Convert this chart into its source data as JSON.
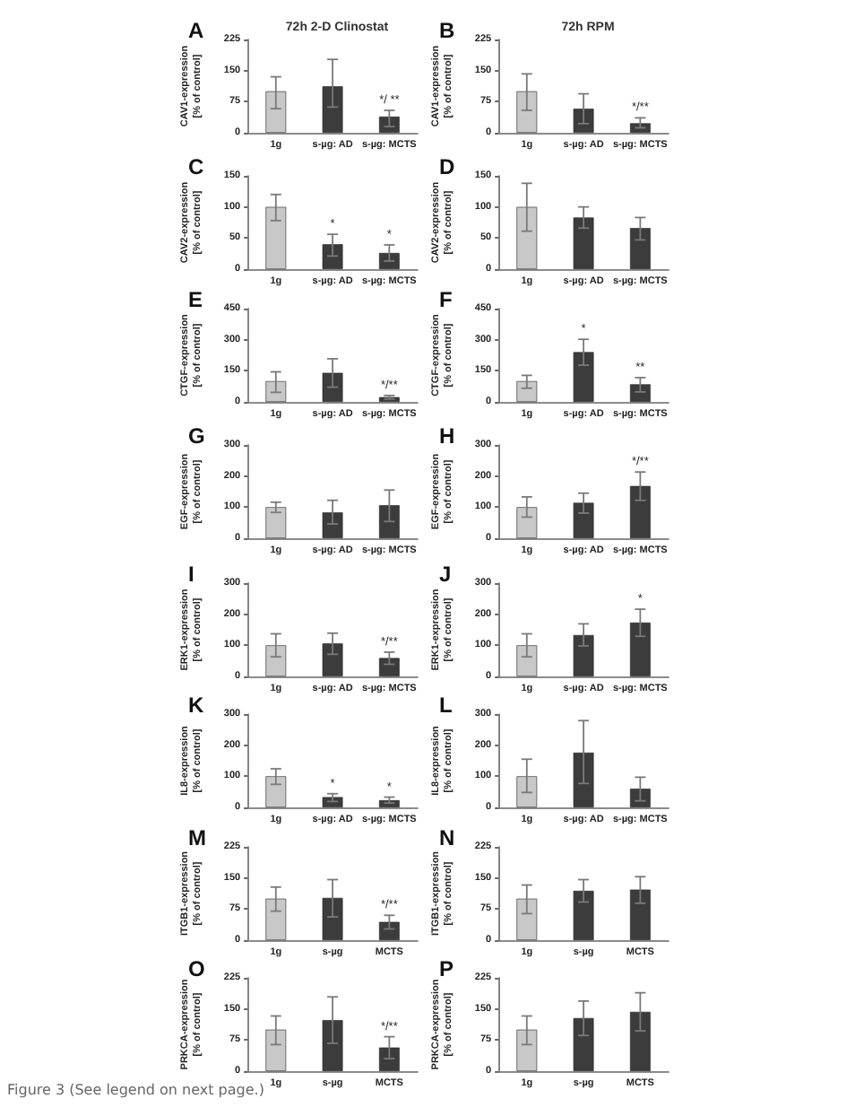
{
  "chart_data": [
    {
      "type": "bar",
      "title": "A",
      "subtitle": "72h 2-D Clinostat",
      "ylabel": "CAV1-expression\n[% of control]",
      "categories": [
        "1g",
        "s-µg: AD",
        "s-µg: MCTS"
      ],
      "values": [
        100,
        112,
        39
      ],
      "errors": [
        [
          58,
          135
        ],
        [
          62,
          177
        ],
        [
          15,
          54
        ]
      ],
      "colors": [
        "#c8c8c8",
        "#3c3c3c",
        "#3c3c3c"
      ],
      "ylim": [
        0,
        225
      ],
      "yticks": [
        0,
        75,
        150,
        225
      ],
      "annotations": [
        {
          "text": "*/ **",
          "x": "s-µg: MCTS",
          "y": 39
        }
      ]
    },
    {
      "type": "bar",
      "title": "B",
      "subtitle": "72h RPM",
      "ylabel": "CAV1-expression\n[% of control]",
      "categories": [
        "1g",
        "s-µg: AD",
        "s-µg: MCTS"
      ],
      "values": [
        100,
        58,
        23
      ],
      "errors": [
        [
          54,
          142
        ],
        [
          22,
          94
        ],
        [
          12,
          36
        ]
      ],
      "colors": [
        "#c8c8c8",
        "#3c3c3c",
        "#3c3c3c"
      ],
      "ylim": [
        0,
        225
      ],
      "yticks": [
        0,
        75,
        150,
        225
      ],
      "annotations": [
        {
          "text": "*/**",
          "x": "s-µg: MCTS",
          "y": 23
        }
      ]
    },
    {
      "type": "bar",
      "title": "C",
      "ylabel": "CAV2-expression\n[% of control]",
      "categories": [
        "1g",
        "s-µg: AD",
        "s-µg: MCTS"
      ],
      "values": [
        100,
        40,
        26
      ],
      "errors": [
        [
          78,
          120
        ],
        [
          21,
          56
        ],
        [
          13,
          39
        ]
      ],
      "colors": [
        "#c8c8c8",
        "#3c3c3c",
        "#3c3c3c"
      ],
      "ylim": [
        0,
        150
      ],
      "yticks": [
        0,
        50,
        100,
        150
      ],
      "annotations": [
        {
          "text": "*",
          "x": "s-µg: AD",
          "y": 40
        },
        {
          "text": "*",
          "x": "s-µg: MCTS",
          "y": 26
        }
      ]
    },
    {
      "type": "bar",
      "title": "D",
      "ylabel": "CAV2-expression\n[% of control]",
      "categories": [
        "1g",
        "s-µg: AD",
        "s-µg: MCTS"
      ],
      "values": [
        100,
        83,
        66
      ],
      "errors": [
        [
          61,
          138
        ],
        [
          66,
          100
        ],
        [
          47,
          83
        ]
      ],
      "colors": [
        "#c8c8c8",
        "#3c3c3c",
        "#3c3c3c"
      ],
      "ylim": [
        0,
        150
      ],
      "yticks": [
        0,
        50,
        100,
        150
      ]
    },
    {
      "type": "bar",
      "title": "E",
      "ylabel": "CTGF-expression\n[% of control]",
      "categories": [
        "1g",
        "s-µg: AD",
        "s-µg: MCTS"
      ],
      "values": [
        100,
        140,
        23
      ],
      "errors": [
        [
          46,
          145
        ],
        [
          71,
          208
        ],
        [
          14,
          31
        ]
      ],
      "colors": [
        "#c8c8c8",
        "#3c3c3c",
        "#3c3c3c"
      ],
      "ylim": [
        0,
        450
      ],
      "yticks": [
        0,
        150,
        300,
        450
      ],
      "annotations": [
        {
          "text": "*/**",
          "x": "s-µg: MCTS",
          "y": 23
        }
      ]
    },
    {
      "type": "bar",
      "title": "F",
      "ylabel": "CTGF-expression\n[% of control]",
      "categories": [
        "1g",
        "s-µg: AD",
        "s-µg: MCTS"
      ],
      "values": [
        100,
        240,
        85
      ],
      "errors": [
        [
          66,
          128
        ],
        [
          177,
          302
        ],
        [
          48,
          117
        ]
      ],
      "colors": [
        "#c8c8c8",
        "#3c3c3c",
        "#3c3c3c"
      ],
      "ylim": [
        0,
        450
      ],
      "yticks": [
        0,
        150,
        300,
        450
      ],
      "annotations": [
        {
          "text": "*",
          "x": "s-µg: AD",
          "y": 240
        },
        {
          "text": "**",
          "x": "s-µg: MCTS",
          "y": 85
        }
      ]
    },
    {
      "type": "bar",
      "title": "G",
      "ylabel": "EGF-expression\n[% of control]",
      "categories": [
        "1g",
        "s-µg: AD",
        "s-µg: MCTS"
      ],
      "values": [
        100,
        83,
        106
      ],
      "errors": [
        [
          83,
          116
        ],
        [
          46,
          122
        ],
        [
          54,
          155
        ]
      ],
      "colors": [
        "#c8c8c8",
        "#3c3c3c",
        "#3c3c3c"
      ],
      "ylim": [
        0,
        300
      ],
      "yticks": [
        0,
        100,
        200,
        300
      ]
    },
    {
      "type": "bar",
      "title": "H",
      "ylabel": "EGF-expression\n[% of control]",
      "categories": [
        "1g",
        "s-µg: AD",
        "s-µg: MCTS"
      ],
      "values": [
        100,
        114,
        168
      ],
      "errors": [
        [
          68,
          133
        ],
        [
          81,
          145
        ],
        [
          122,
          213
        ]
      ],
      "colors": [
        "#c8c8c8",
        "#3c3c3c",
        "#3c3c3c"
      ],
      "ylim": [
        0,
        300
      ],
      "yticks": [
        0,
        100,
        200,
        300
      ],
      "annotations": [
        {
          "text": "*/**",
          "x": "s-µg: MCTS",
          "y": 168
        }
      ]
    },
    {
      "type": "bar",
      "title": "I",
      "ylabel": "ERK1-expression\n[% of control]",
      "categories": [
        "1g",
        "s-µg: AD",
        "s-µg: MCTS"
      ],
      "values": [
        100,
        106,
        59
      ],
      "errors": [
        [
          63,
          137
        ],
        [
          71,
          139
        ],
        [
          39,
          78
        ]
      ],
      "colors": [
        "#c8c8c8",
        "#3c3c3c",
        "#3c3c3c"
      ],
      "ylim": [
        0,
        300
      ],
      "yticks": [
        0,
        100,
        200,
        300
      ],
      "annotations": [
        {
          "text": "*/**",
          "x": "s-µg: MCTS",
          "y": 59
        }
      ]
    },
    {
      "type": "bar",
      "title": "J",
      "ylabel": "ERK1-expression\n[% of control]",
      "categories": [
        "1g",
        "s-µg: AD",
        "s-µg: MCTS"
      ],
      "values": [
        100,
        133,
        173
      ],
      "errors": [
        [
          63,
          137
        ],
        [
          98,
          169
        ],
        [
          129,
          216
        ]
      ],
      "colors": [
        "#c8c8c8",
        "#3c3c3c",
        "#3c3c3c"
      ],
      "ylim": [
        0,
        300
      ],
      "yticks": [
        0,
        100,
        200,
        300
      ],
      "annotations": [
        {
          "text": "*",
          "x": "s-µg: MCTS",
          "y": 173
        }
      ]
    },
    {
      "type": "bar",
      "title": "K",
      "ylabel": "IL8-expression\n[% of control]",
      "categories": [
        "1g",
        "s-µg: AD",
        "s-µg: MCTS"
      ],
      "values": [
        100,
        33,
        23
      ],
      "errors": [
        [
          74,
          124
        ],
        [
          19,
          44
        ],
        [
          14,
          33
        ]
      ],
      "colors": [
        "#c8c8c8",
        "#3c3c3c",
        "#3c3c3c"
      ],
      "ylim": [
        0,
        300
      ],
      "yticks": [
        0,
        100,
        200,
        300
      ],
      "annotations": [
        {
          "text": "*",
          "x": "s-µg: AD",
          "y": 33
        },
        {
          "text": "*",
          "x": "s-µg: MCTS",
          "y": 23
        }
      ]
    },
    {
      "type": "bar",
      "title": "L",
      "ylabel": "IL8-expression\n[% of control]",
      "categories": [
        "1g",
        "s-µg: AD",
        "s-µg: MCTS"
      ],
      "values": [
        100,
        176,
        60
      ],
      "errors": [
        [
          48,
          155
        ],
        [
          77,
          279
        ],
        [
          21,
          97
        ]
      ],
      "colors": [
        "#c8c8c8",
        "#3c3c3c",
        "#3c3c3c"
      ],
      "ylim": [
        0,
        300
      ],
      "yticks": [
        0,
        100,
        200,
        300
      ]
    },
    {
      "type": "bar",
      "title": "M",
      "ylabel": "ITGB1-expression\n[% of control]",
      "categories": [
        "1g",
        "s-µg",
        "MCTS"
      ],
      "values": [
        100,
        102,
        44
      ],
      "errors": [
        [
          70,
          128
        ],
        [
          56,
          146
        ],
        [
          27,
          60
        ]
      ],
      "colors": [
        "#c8c8c8",
        "#3c3c3c",
        "#3c3c3c"
      ],
      "ylim": [
        0,
        225
      ],
      "yticks": [
        0,
        75,
        150,
        225
      ],
      "annotations": [
        {
          "text": "*/**",
          "x": "MCTS",
          "y": 44
        }
      ]
    },
    {
      "type": "bar",
      "title": "N",
      "ylabel": "ITGB1-expression\n[% of control]",
      "categories": [
        "1g",
        "s-µg",
        "MCTS"
      ],
      "values": [
        100,
        119,
        122
      ],
      "errors": [
        [
          64,
          133
        ],
        [
          92,
          146
        ],
        [
          89,
          153
        ]
      ],
      "colors": [
        "#c8c8c8",
        "#3c3c3c",
        "#3c3c3c"
      ],
      "ylim": [
        0,
        225
      ],
      "yticks": [
        0,
        75,
        150,
        225
      ]
    },
    {
      "type": "bar",
      "title": "O",
      "ylabel": "PRKCA-expression\n[% of control]",
      "categories": [
        "1g",
        "s-µg",
        "MCTS"
      ],
      "values": [
        100,
        123,
        57
      ],
      "errors": [
        [
          64,
          133
        ],
        [
          67,
          179
        ],
        [
          30,
          83
        ]
      ],
      "colors": [
        "#c8c8c8",
        "#3c3c3c",
        "#3c3c3c"
      ],
      "ylim": [
        0,
        225
      ],
      "yticks": [
        0,
        75,
        150,
        225
      ],
      "annotations": [
        {
          "text": "*/**",
          "x": "MCTS",
          "y": 57
        },
        "Figure 3 (See legend on next page.)"
      ]
    },
    {
      "type": "bar",
      "title": "P",
      "ylabel": "PRKCA-expression\n[% of control]",
      "categories": [
        "1g",
        "s-µg",
        "MCTS"
      ],
      "values": [
        100,
        128,
        143
      ],
      "errors": [
        [
          64,
          133
        ],
        [
          86,
          169
        ],
        [
          97,
          189
        ]
      ],
      "colors": [
        "#c8c8c8",
        "#3c3c3c",
        "#3c3c3c"
      ],
      "ylim": [
        0,
        225
      ],
      "yticks": [
        0,
        75,
        150,
        225
      ]
    }
  ]
}
